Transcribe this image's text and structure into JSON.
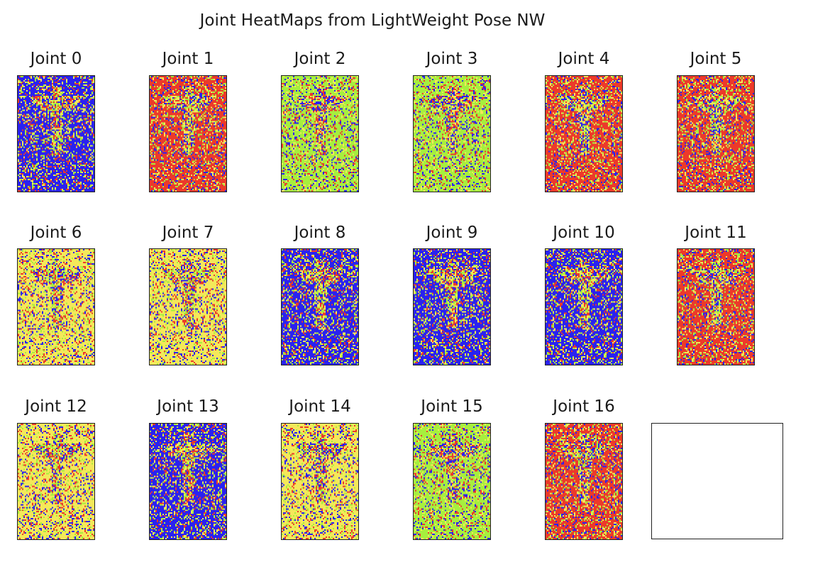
{
  "figure": {
    "title": "Joint HeatMaps from LightWeight Pose NW"
  },
  "colors": {
    "blue": "#2a22f0",
    "red": "#ec3a2a",
    "yellow": "#f4e85a",
    "green": "#a6ef3e",
    "purple": "#8a2c8f",
    "axes_edge": "#222222"
  },
  "chart_data": {
    "type": "heatmap",
    "colormap": "prism-like (blue / red / yellow / green)",
    "panels": [
      {
        "title": "Joint 0",
        "dominant": "blue"
      },
      {
        "title": "Joint 1",
        "dominant": "red"
      },
      {
        "title": "Joint 2",
        "dominant": "green"
      },
      {
        "title": "Joint 3",
        "dominant": "green"
      },
      {
        "title": "Joint 4",
        "dominant": "red"
      },
      {
        "title": "Joint 5",
        "dominant": "red"
      },
      {
        "title": "Joint 6",
        "dominant": "yellow"
      },
      {
        "title": "Joint 7",
        "dominant": "yellow"
      },
      {
        "title": "Joint 8",
        "dominant": "blue"
      },
      {
        "title": "Joint 9",
        "dominant": "blue"
      },
      {
        "title": "Joint 10",
        "dominant": "blue"
      },
      {
        "title": "Joint 11",
        "dominant": "red"
      },
      {
        "title": "Joint 12",
        "dominant": "yellow"
      },
      {
        "title": "Joint 13",
        "dominant": "blue"
      },
      {
        "title": "Joint 14",
        "dominant": "yellow"
      },
      {
        "title": "Joint 15",
        "dominant": "green"
      },
      {
        "title": "Joint 16",
        "dominant": "red"
      }
    ],
    "empty_axes": 1,
    "grid": false,
    "axis_ticks": false
  }
}
